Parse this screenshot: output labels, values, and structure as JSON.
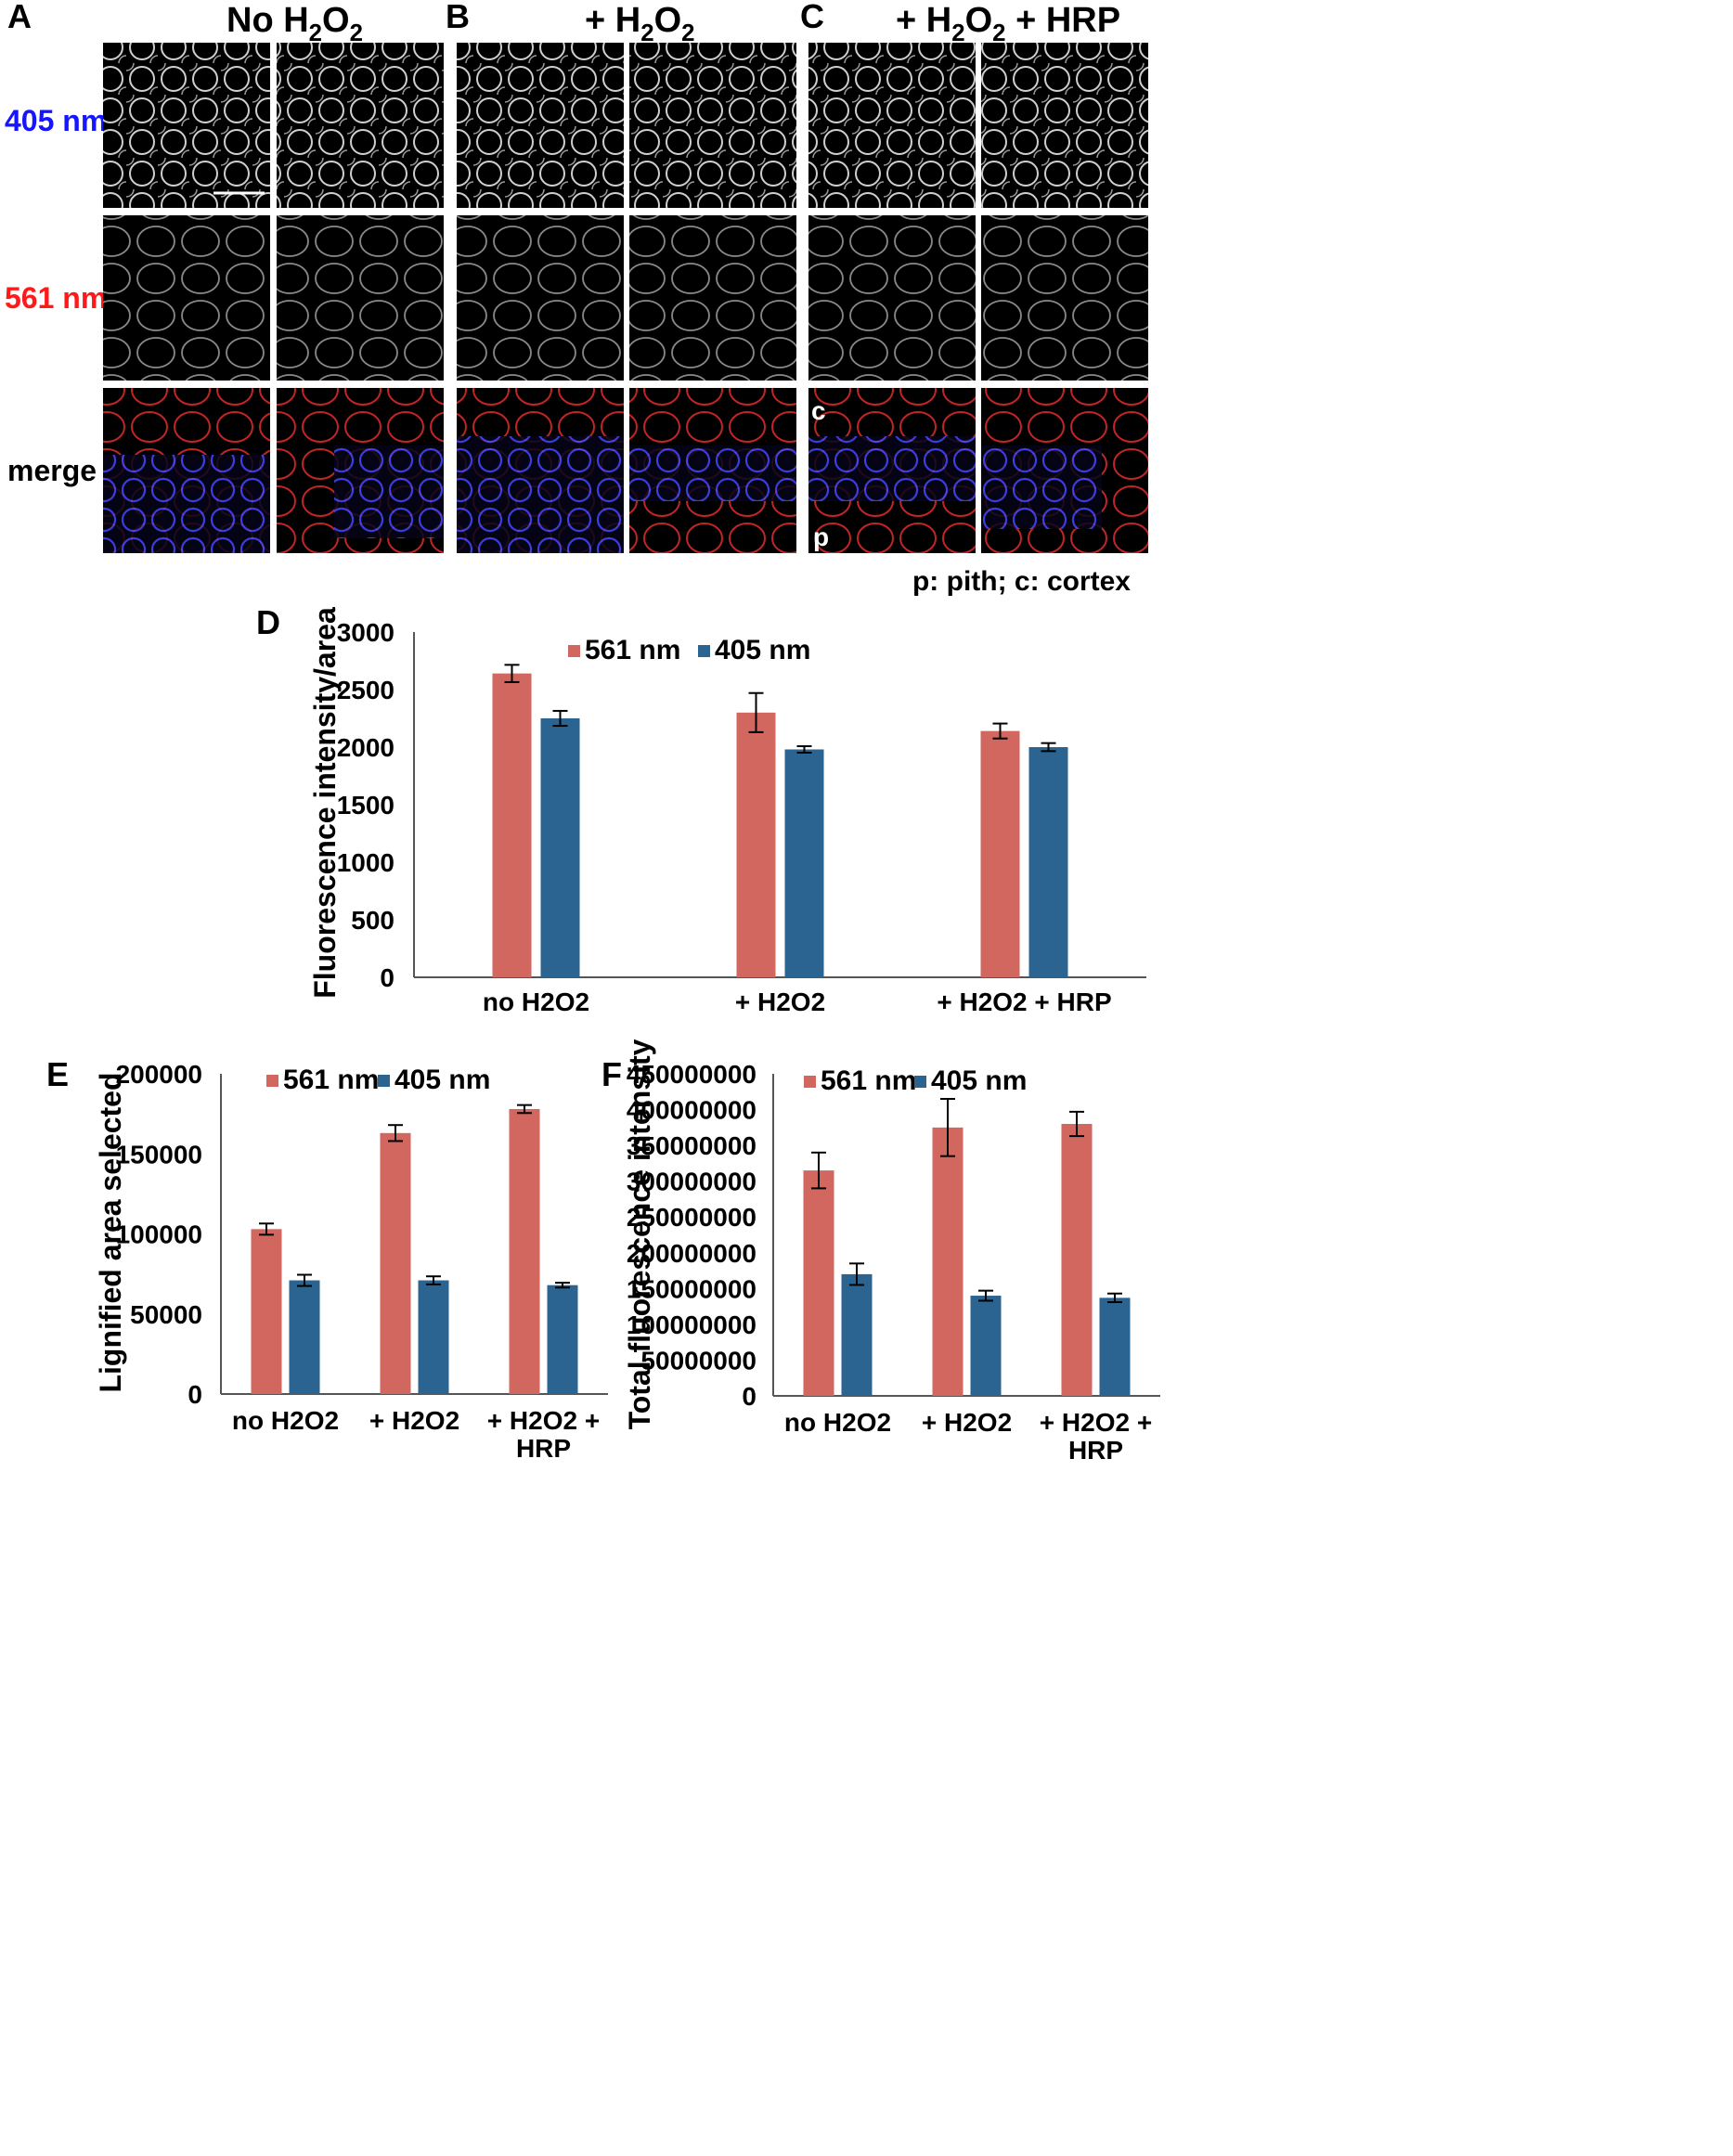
{
  "colors": {
    "s561": "#d1675e",
    "s405": "#2b6490",
    "label_405": "#1515ff",
    "label_561": "#ff1a1a"
  },
  "micrographs": {
    "panel_letters": [
      "A",
      "B",
      "C"
    ],
    "column_heads": [
      {
        "main": "No H",
        "sub": "2",
        "main2": "O",
        "sub2": "2",
        "tail": ""
      },
      {
        "main": "+ H",
        "sub": "2",
        "main2": "O",
        "sub2": "2",
        "tail": ""
      },
      {
        "main": "+ H",
        "sub": "2",
        "main2": "O",
        "sub2": "2",
        "tail": " + HRP"
      }
    ],
    "row_labels": [
      "405 nm",
      "561 nm",
      "merge"
    ],
    "inset_labels": {
      "cortex": "c",
      "pith": "p"
    },
    "legend_note": "p: pith; c: cortex"
  },
  "chart_data": [
    {
      "panel": "D",
      "type": "bar",
      "categories": [
        "no H2O2",
        "+ H2O2",
        "+ H2O2 + HRP"
      ],
      "series": [
        {
          "name": "561 nm",
          "values": [
            2640,
            2300,
            2140
          ],
          "errors": [
            75,
            170,
            65
          ]
        },
        {
          "name": "405 nm",
          "values": [
            2250,
            1980,
            2000
          ],
          "errors": [
            65,
            28,
            35
          ]
        }
      ],
      "ylabel": "Fluorescence intensity/area",
      "ylim": [
        0,
        3000
      ],
      "yticks": [
        "0",
        "500",
        "1000",
        "1500",
        "2000",
        "2500",
        "3000"
      ],
      "legend": "top"
    },
    {
      "panel": "E",
      "type": "bar",
      "categories": [
        [
          "no H2O2"
        ],
        [
          "+ H2O2"
        ],
        [
          "+ H2O2 +",
          "HRP"
        ]
      ],
      "series": [
        {
          "name": "561 nm",
          "values": [
            103000,
            163000,
            178000
          ],
          "errors": [
            3500,
            5000,
            2500
          ]
        },
        {
          "name": "405 nm",
          "values": [
            71000,
            71000,
            68000
          ],
          "errors": [
            3500,
            2500,
            1500
          ]
        }
      ],
      "ylabel": "Lignified area selected",
      "ylim": [
        0,
        200000
      ],
      "yticks": [
        "0",
        "50000",
        "100000",
        "150000",
        "200000"
      ],
      "legend": "top"
    },
    {
      "panel": "F",
      "type": "bar",
      "categories": [
        [
          "no H2O2"
        ],
        [
          "+ H2O2"
        ],
        [
          "+ H2O2 +",
          "HRP"
        ]
      ],
      "series": [
        {
          "name": "561 nm",
          "values": [
            315000000,
            375000000,
            380000000
          ],
          "errors": [
            25000000,
            40000000,
            17000000
          ]
        },
        {
          "name": "405 nm",
          "values": [
            170000000,
            140000000,
            137000000
          ],
          "errors": [
            15000000,
            7000000,
            6000000
          ]
        }
      ],
      "ylabel": "Total fluorescence intensity",
      "ylim": [
        0,
        450000000
      ],
      "yticks": [
        "0",
        "50000000",
        "100000000",
        "150000000",
        "200000000",
        "250000000",
        "300000000",
        "350000000",
        "400000000",
        "450000000"
      ],
      "legend": "top"
    }
  ]
}
